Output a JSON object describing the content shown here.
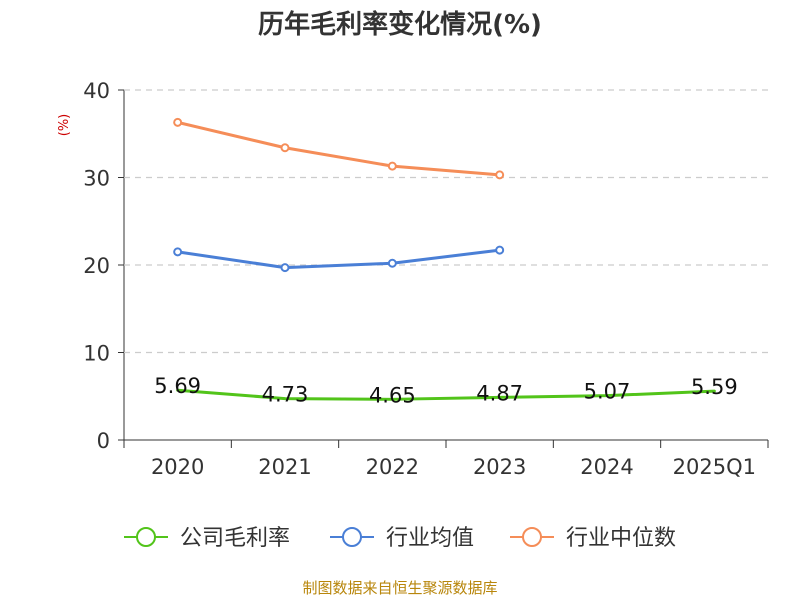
{
  "chart_data": {
    "type": "line",
    "title": "历年毛利率变化情况(%)",
    "ylabel": "(%)",
    "xlabel": "",
    "categories": [
      "2020",
      "2021",
      "2022",
      "2023",
      "2024",
      "2025Q1"
    ],
    "ylim": [
      0,
      40
    ],
    "yticks": [
      0,
      10,
      20,
      30,
      40
    ],
    "grid": true,
    "legend_position": "bottom",
    "series": [
      {
        "name": "公司毛利率",
        "color": "#52c41a",
        "values": [
          5.69,
          4.73,
          4.65,
          4.87,
          5.07,
          5.59
        ],
        "show_labels": true,
        "label_texts": [
          "5.69",
          "4.73",
          "4.65",
          "4.87",
          "5.07",
          "5.59"
        ],
        "markers": false
      },
      {
        "name": "行业均值",
        "color": "#4a7fd6",
        "values": [
          21.5,
          19.7,
          20.2,
          21.7,
          null,
          null
        ],
        "show_labels": false,
        "markers": true
      },
      {
        "name": "行业中位数",
        "color": "#f58d58",
        "values": [
          36.3,
          33.4,
          31.3,
          30.3,
          null,
          null
        ],
        "show_labels": false,
        "markers": true
      }
    ]
  },
  "source": "制图数据来自恒生聚源数据库"
}
